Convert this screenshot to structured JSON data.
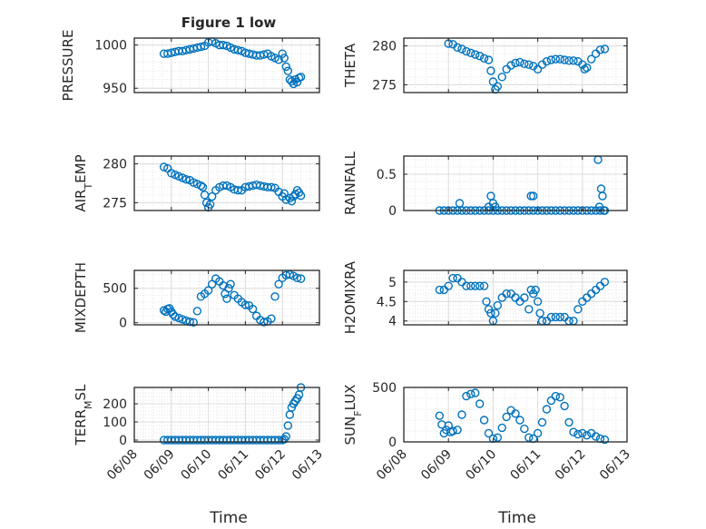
{
  "figure": {
    "title": "Figure 1 low",
    "accent_color": "#0072BD"
  },
  "chart_data": [
    {
      "type": "scatter",
      "name": "pressure",
      "ylabel": "PRESSURE",
      "ylim": [
        945,
        1008
      ],
      "yticks": [
        950,
        1000
      ],
      "xlim": [
        0,
        5
      ],
      "x": [
        0.8,
        0.9,
        1.0,
        1.1,
        1.2,
        1.3,
        1.4,
        1.5,
        1.6,
        1.7,
        1.8,
        1.9,
        2.0,
        2.1,
        2.2,
        2.3,
        2.4,
        2.5,
        2.6,
        2.7,
        2.8,
        2.9,
        3.0,
        3.1,
        3.2,
        3.3,
        3.4,
        3.5,
        3.6,
        3.7,
        3.8,
        3.9,
        4.0,
        4.05,
        4.1,
        4.15,
        4.2,
        4.25,
        4.3,
        4.35,
        4.4,
        4.45,
        4.5
      ],
      "y": [
        990,
        990,
        991,
        992,
        993,
        993,
        994,
        995,
        996,
        997,
        998,
        999,
        1003,
        1004,
        1002,
        1000,
        1000,
        999,
        997,
        995,
        994,
        993,
        991,
        990,
        989,
        988,
        988,
        989,
        990,
        987,
        985,
        983,
        990,
        985,
        975,
        970,
        960,
        958,
        955,
        960,
        957,
        962,
        963
      ]
    },
    {
      "type": "scatter",
      "name": "theta",
      "ylabel": "THETA",
      "ylim": [
        274,
        281
      ],
      "yticks": [
        275,
        280
      ],
      "xlim": [
        0,
        5
      ],
      "x": [
        1.0,
        1.1,
        1.2,
        1.3,
        1.4,
        1.5,
        1.6,
        1.7,
        1.8,
        1.9,
        1.95,
        2.0,
        2.05,
        2.1,
        2.2,
        2.3,
        2.4,
        2.5,
        2.6,
        2.7,
        2.8,
        2.9,
        3.0,
        3.1,
        3.2,
        3.3,
        3.4,
        3.5,
        3.6,
        3.7,
        3.8,
        3.9,
        4.0,
        4.05,
        4.1,
        4.2,
        4.3,
        4.4,
        4.5
      ],
      "y": [
        280.3,
        280.2,
        279.8,
        279.6,
        279.3,
        279.1,
        278.9,
        278.7,
        278.4,
        278.2,
        276.8,
        275.4,
        274.4,
        274.8,
        276.0,
        277.0,
        277.5,
        277.8,
        277.9,
        277.7,
        277.6,
        277.4,
        277.0,
        277.6,
        278.0,
        278.2,
        278.3,
        278.3,
        278.2,
        278.1,
        278.1,
        278.0,
        277.6,
        277.0,
        277.2,
        278.3,
        279.0,
        279.5,
        279.6
      ]
    },
    {
      "type": "scatter",
      "name": "air_temp",
      "ylabel": "AIR_TEMP",
      "ylabel_parts": [
        "AIR",
        "T",
        "EMP"
      ],
      "ylim": [
        274,
        281
      ],
      "yticks": [
        275,
        280
      ],
      "xlim": [
        0,
        5
      ],
      "x": [
        0.8,
        0.9,
        1.0,
        1.1,
        1.2,
        1.3,
        1.4,
        1.5,
        1.6,
        1.7,
        1.8,
        1.85,
        1.9,
        1.95,
        2.0,
        2.05,
        2.1,
        2.2,
        2.3,
        2.4,
        2.5,
        2.6,
        2.7,
        2.8,
        2.9,
        3.0,
        3.1,
        3.2,
        3.3,
        3.4,
        3.5,
        3.6,
        3.7,
        3.8,
        3.9,
        4.0,
        4.05,
        4.1,
        4.2,
        4.25,
        4.3,
        4.35,
        4.4,
        4.45,
        4.5
      ],
      "y": [
        279.6,
        279.4,
        278.8,
        278.6,
        278.4,
        278.2,
        278.0,
        277.9,
        277.6,
        277.4,
        277.2,
        277.0,
        276.0,
        275.0,
        274.4,
        274.8,
        275.8,
        276.6,
        277.0,
        277.2,
        277.2,
        277.0,
        276.7,
        276.6,
        276.6,
        277.0,
        277.1,
        277.2,
        277.3,
        277.2,
        277.1,
        277.0,
        277.0,
        276.9,
        276.4,
        275.8,
        276.2,
        275.4,
        275.6,
        275.2,
        275.8,
        276.1,
        276.6,
        276.3,
        275.9
      ]
    },
    {
      "type": "scatter",
      "name": "rainfall",
      "ylabel": "RAINFALL",
      "ylim": [
        0,
        0.75
      ],
      "yticks": [
        0,
        0.5
      ],
      "xlim": [
        0,
        5
      ],
      "x": [
        0.8,
        0.9,
        1.0,
        1.1,
        1.2,
        1.3,
        1.4,
        1.5,
        1.6,
        1.7,
        1.8,
        1.9,
        2.0,
        2.1,
        2.2,
        2.3,
        2.4,
        2.5,
        2.6,
        2.7,
        2.8,
        2.9,
        3.0,
        3.1,
        3.2,
        3.3,
        3.4,
        3.5,
        3.6,
        3.7,
        3.8,
        3.9,
        4.0,
        4.1,
        4.2,
        4.3,
        4.4,
        4.5,
        1.25,
        1.9,
        1.95,
        2.0,
        2.05,
        2.85,
        2.9,
        4.35,
        4.38,
        4.42,
        4.45,
        4.48
      ],
      "y": [
        0,
        0,
        0,
        0,
        0,
        0,
        0,
        0,
        0,
        0,
        0,
        0,
        0,
        0,
        0,
        0,
        0,
        0,
        0,
        0,
        0,
        0,
        0,
        0,
        0,
        0,
        0,
        0,
        0,
        0,
        0,
        0,
        0,
        0,
        0,
        0,
        0,
        0,
        0.1,
        0.05,
        0.2,
        0.1,
        0.05,
        0.2,
        0.2,
        0.7,
        0.05,
        0.3,
        0.2,
        0
      ]
    },
    {
      "type": "scatter",
      "name": "mixdepth",
      "ylabel": "MIXDEPTH",
      "ylim": [
        -30,
        760
      ],
      "yticks": [
        0,
        500
      ],
      "xlim": [
        0,
        5
      ],
      "x": [
        0.8,
        0.85,
        0.9,
        0.95,
        1.0,
        1.05,
        1.1,
        1.2,
        1.3,
        1.4,
        1.5,
        1.6,
        1.7,
        1.8,
        1.9,
        2.0,
        2.1,
        2.2,
        2.3,
        2.4,
        2.45,
        2.5,
        2.55,
        2.6,
        2.7,
        2.8,
        2.9,
        3.0,
        3.1,
        3.2,
        3.3,
        3.4,
        3.5,
        3.6,
        3.7,
        3.8,
        3.9,
        4.0,
        4.1,
        4.2,
        4.3,
        4.4,
        4.5
      ],
      "y": [
        180,
        160,
        200,
        210,
        160,
        120,
        90,
        70,
        50,
        30,
        15,
        5,
        170,
        380,
        420,
        470,
        560,
        640,
        600,
        540,
        420,
        350,
        500,
        560,
        400,
        350,
        300,
        260,
        250,
        200,
        100,
        40,
        10,
        20,
        60,
        380,
        560,
        650,
        690,
        700,
        680,
        650,
        640
      ]
    },
    {
      "type": "scatter",
      "name": "h2omixra",
      "ylabel": "H2OMIXRA",
      "ylim": [
        3.9,
        5.3
      ],
      "yticks": [
        4,
        4.5,
        5
      ],
      "xlim": [
        0,
        5
      ],
      "x": [
        0.8,
        0.9,
        1.0,
        1.1,
        1.2,
        1.3,
        1.4,
        1.5,
        1.6,
        1.7,
        1.8,
        1.85,
        1.9,
        1.95,
        2.0,
        2.05,
        2.1,
        2.2,
        2.3,
        2.4,
        2.5,
        2.6,
        2.7,
        2.8,
        2.85,
        2.9,
        2.95,
        3.0,
        3.05,
        3.1,
        3.2,
        3.3,
        3.4,
        3.5,
        3.6,
        3.7,
        3.8,
        3.9,
        4.0,
        4.1,
        4.2,
        4.3,
        4.4,
        4.5
      ],
      "y": [
        4.8,
        4.8,
        4.9,
        5.1,
        5.1,
        5.0,
        4.9,
        4.9,
        4.9,
        4.9,
        4.9,
        4.5,
        4.3,
        4.2,
        4.0,
        4.2,
        4.4,
        4.6,
        4.7,
        4.7,
        4.6,
        4.5,
        4.6,
        4.3,
        4.8,
        4.7,
        4.8,
        4.5,
        4.2,
        4.0,
        4.0,
        4.1,
        4.1,
        4.1,
        4.1,
        4.0,
        4.0,
        4.3,
        4.5,
        4.6,
        4.7,
        4.8,
        4.9,
        5.0
      ]
    },
    {
      "type": "scatter",
      "name": "terr_msl",
      "ylabel": "TERR_MSL",
      "ylabel_parts": [
        "TERR",
        "M",
        "SL"
      ],
      "ylim": [
        -10,
        290
      ],
      "yticks": [
        0,
        100,
        200
      ],
      "xlim": [
        0,
        5
      ],
      "x": [
        0.8,
        0.9,
        1.0,
        1.1,
        1.2,
        1.3,
        1.4,
        1.5,
        1.6,
        1.7,
        1.8,
        1.9,
        2.0,
        2.1,
        2.2,
        2.3,
        2.4,
        2.5,
        2.6,
        2.7,
        2.8,
        2.9,
        3.0,
        3.1,
        3.2,
        3.3,
        3.4,
        3.5,
        3.6,
        3.7,
        3.8,
        3.9,
        4.0,
        4.05,
        4.1,
        4.15,
        4.2,
        4.25,
        4.3,
        4.35,
        4.4,
        4.45,
        4.5
      ],
      "y": [
        0,
        0,
        0,
        0,
        0,
        0,
        0,
        0,
        0,
        0,
        0,
        0,
        0,
        0,
        0,
        0,
        0,
        0,
        0,
        0,
        0,
        0,
        0,
        0,
        0,
        0,
        0,
        0,
        0,
        0,
        0,
        0,
        0,
        5,
        20,
        80,
        140,
        180,
        200,
        215,
        230,
        250,
        290
      ]
    },
    {
      "type": "scatter",
      "name": "sun_flux",
      "ylabel": "SUN_FLUX",
      "ylabel_parts": [
        "SUN",
        "F",
        "LUX"
      ],
      "ylim": [
        0,
        500
      ],
      "yticks": [
        0,
        500
      ],
      "xlim": [
        0,
        5
      ],
      "x": [
        0.8,
        0.85,
        0.9,
        0.95,
        1.0,
        1.05,
        1.1,
        1.2,
        1.3,
        1.4,
        1.5,
        1.6,
        1.7,
        1.8,
        1.9,
        2.0,
        2.1,
        2.2,
        2.3,
        2.4,
        2.5,
        2.6,
        2.7,
        2.8,
        2.9,
        3.0,
        3.1,
        3.2,
        3.3,
        3.4,
        3.5,
        3.6,
        3.7,
        3.8,
        3.9,
        4.0,
        4.1,
        4.2,
        4.3,
        4.4,
        4.5
      ],
      "y": [
        240,
        160,
        80,
        110,
        150,
        90,
        100,
        110,
        250,
        420,
        440,
        450,
        350,
        200,
        80,
        30,
        40,
        130,
        230,
        290,
        260,
        200,
        120,
        40,
        30,
        80,
        180,
        300,
        380,
        420,
        410,
        330,
        180,
        90,
        70,
        80,
        60,
        80,
        50,
        30,
        20
      ]
    }
  ],
  "xaxis": {
    "ticks": [
      "06/08",
      "06/09",
      "06/10",
      "06/11",
      "06/12",
      "06/13"
    ],
    "label": "Time"
  }
}
